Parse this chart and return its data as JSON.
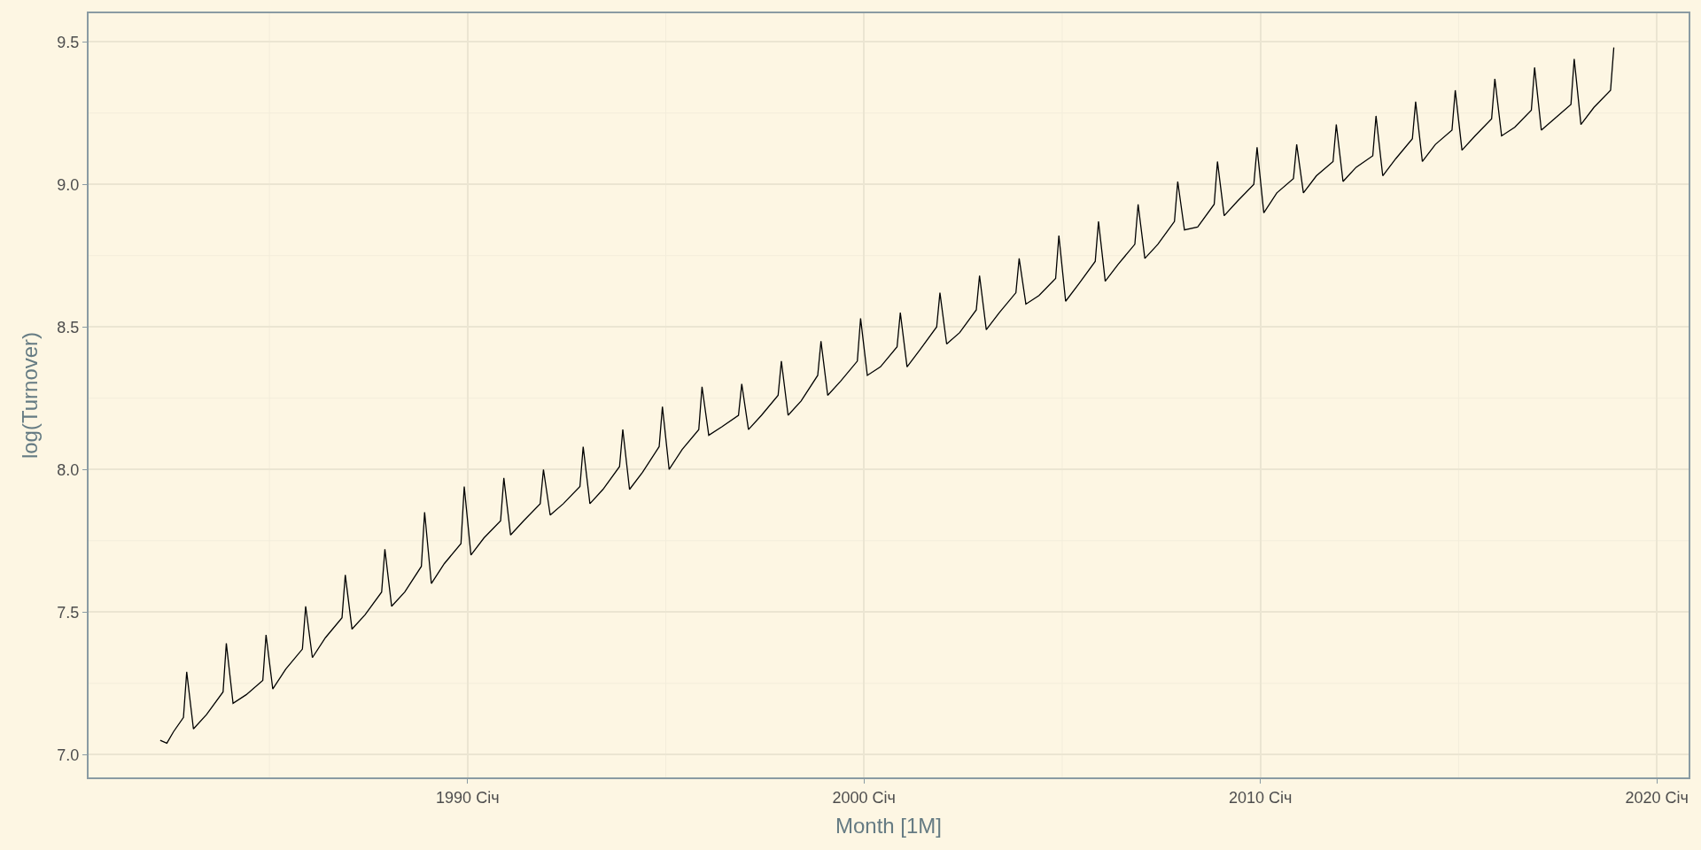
{
  "chart_data": {
    "type": "line",
    "xlabel": "Month [1M]",
    "ylabel": "log(Turnover)",
    "x": [
      "1982-04",
      "1982-06",
      "1982-08",
      "1982-11",
      "1982-12",
      "1983-02",
      "1983-06",
      "1983-11",
      "1983-12",
      "1984-02",
      "1984-06",
      "1984-11",
      "1984-12",
      "1985-02",
      "1985-06",
      "1985-11",
      "1985-12",
      "1986-02",
      "1986-06",
      "1986-11",
      "1986-12",
      "1987-02",
      "1987-06",
      "1987-11",
      "1987-12",
      "1988-02",
      "1988-06",
      "1988-11",
      "1988-12",
      "1989-02",
      "1989-06",
      "1989-11",
      "1989-12",
      "1990-02",
      "1990-06",
      "1990-11",
      "1990-12",
      "1991-02",
      "1991-06",
      "1991-11",
      "1991-12",
      "1992-02",
      "1992-06",
      "1992-11",
      "1992-12",
      "1993-02",
      "1993-06",
      "1993-11",
      "1993-12",
      "1994-02",
      "1994-06",
      "1994-11",
      "1994-12",
      "1995-02",
      "1995-06",
      "1995-11",
      "1995-12",
      "1996-02",
      "1996-06",
      "1996-11",
      "1996-12",
      "1997-02",
      "1997-06",
      "1997-11",
      "1997-12",
      "1998-02",
      "1998-06",
      "1998-11",
      "1998-12",
      "1999-02",
      "1999-06",
      "1999-11",
      "1999-12",
      "2000-02",
      "2000-06",
      "2000-11",
      "2000-12",
      "2001-02",
      "2001-06",
      "2001-11",
      "2001-12",
      "2002-02",
      "2002-06",
      "2002-11",
      "2002-12",
      "2003-02",
      "2003-06",
      "2003-11",
      "2003-12",
      "2004-02",
      "2004-06",
      "2004-11",
      "2004-12",
      "2005-02",
      "2005-06",
      "2005-11",
      "2005-12",
      "2006-02",
      "2006-06",
      "2006-11",
      "2006-12",
      "2007-02",
      "2007-06",
      "2007-11",
      "2007-12",
      "2008-02",
      "2008-06",
      "2008-11",
      "2008-12",
      "2009-02",
      "2009-06",
      "2009-11",
      "2009-12",
      "2010-02",
      "2010-06",
      "2010-11",
      "2010-12",
      "2011-02",
      "2011-06",
      "2011-11",
      "2011-12",
      "2012-02",
      "2012-06",
      "2012-11",
      "2012-12",
      "2013-02",
      "2013-06",
      "2013-11",
      "2013-12",
      "2014-02",
      "2014-06",
      "2014-11",
      "2014-12",
      "2015-02",
      "2015-06",
      "2015-11",
      "2015-12",
      "2016-02",
      "2016-06",
      "2016-11",
      "2016-12",
      "2017-02",
      "2017-06",
      "2017-11",
      "2017-12",
      "2018-02",
      "2018-06",
      "2018-11",
      "2018-12"
    ],
    "series": [
      {
        "color": "#000000",
        "values": [
          7.05,
          7.04,
          7.08,
          7.13,
          7.29,
          7.09,
          7.14,
          7.22,
          7.39,
          7.18,
          7.21,
          7.26,
          7.42,
          7.23,
          7.3,
          7.37,
          7.52,
          7.34,
          7.41,
          7.48,
          7.63,
          7.44,
          7.49,
          7.57,
          7.72,
          7.52,
          7.57,
          7.66,
          7.85,
          7.6,
          7.67,
          7.74,
          7.94,
          7.7,
          7.76,
          7.82,
          7.97,
          7.77,
          7.82,
          7.88,
          8.0,
          7.84,
          7.88,
          7.94,
          8.08,
          7.88,
          7.93,
          8.01,
          8.14,
          7.93,
          7.99,
          8.08,
          8.22,
          8.0,
          8.07,
          8.14,
          8.29,
          8.12,
          8.15,
          8.19,
          8.3,
          8.14,
          8.19,
          8.26,
          8.38,
          8.19,
          8.24,
          8.33,
          8.45,
          8.26,
          8.31,
          8.38,
          8.53,
          8.33,
          8.36,
          8.43,
          8.55,
          8.36,
          8.42,
          8.5,
          8.62,
          8.44,
          8.48,
          8.56,
          8.68,
          8.49,
          8.55,
          8.62,
          8.74,
          8.58,
          8.61,
          8.67,
          8.82,
          8.59,
          8.65,
          8.73,
          8.87,
          8.66,
          8.72,
          8.79,
          8.93,
          8.74,
          8.79,
          8.87,
          9.01,
          8.84,
          8.85,
          8.93,
          9.08,
          8.89,
          8.94,
          9.0,
          9.13,
          8.9,
          8.97,
          9.02,
          9.14,
          8.97,
          9.03,
          9.08,
          9.21,
          9.01,
          9.06,
          9.1,
          9.24,
          9.03,
          9.09,
          9.16,
          9.29,
          9.08,
          9.14,
          9.19,
          9.33,
          9.12,
          9.17,
          9.23,
          9.37,
          9.17,
          9.2,
          9.26,
          9.41,
          9.19,
          9.23,
          9.28,
          9.44,
          9.21,
          9.27,
          9.33,
          9.48
        ]
      }
    ],
    "xlim": [
      "1980-06-10",
      "2020-10-20"
    ],
    "xticks": [
      {
        "value": "1990-01-01",
        "label": "1990 Січ"
      },
      {
        "value": "2000-01-01",
        "label": "2000 Січ"
      },
      {
        "value": "2010-01-01",
        "label": "2010 Січ"
      },
      {
        "value": "2020-01-01",
        "label": "2020 Січ"
      }
    ],
    "ylim": [
      6.92,
      9.6
    ],
    "yticks": [
      {
        "value": 7.0,
        "label": "7.0"
      },
      {
        "value": 7.5,
        "label": "7.5"
      },
      {
        "value": 8.0,
        "label": "8.0"
      },
      {
        "value": 8.5,
        "label": "8.5"
      },
      {
        "value": 9.0,
        "label": "9.0"
      },
      {
        "value": 9.5,
        "label": "9.5"
      }
    ],
    "grid": true,
    "marker": "none",
    "line_style": "solid"
  }
}
